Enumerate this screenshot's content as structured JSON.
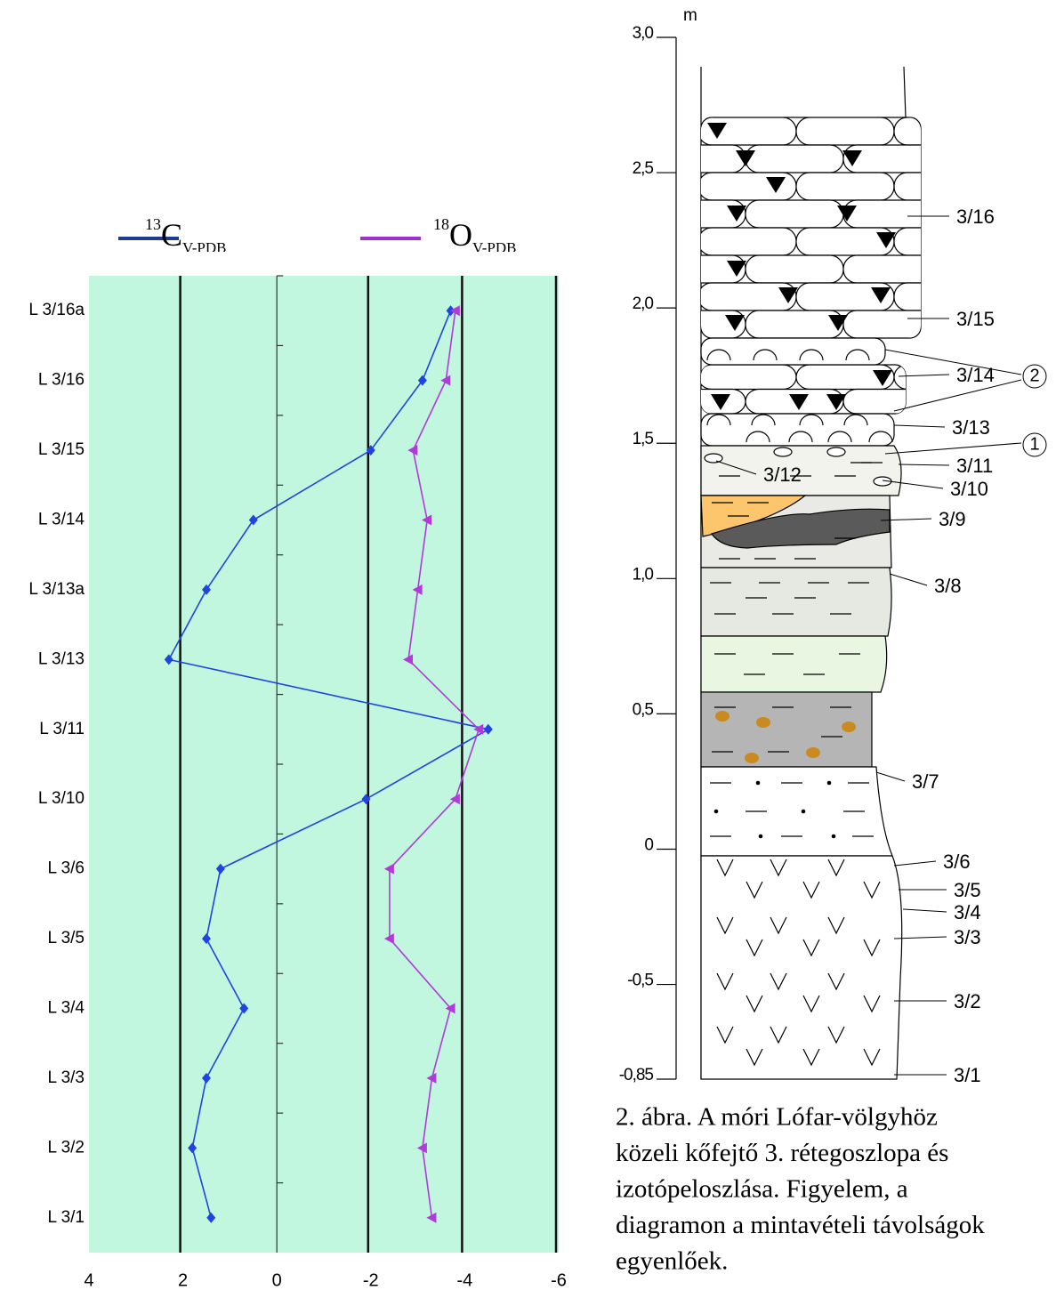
{
  "chart_data": {
    "type": "line",
    "orientation": "horizontal",
    "categories": [
      "L 3/16a",
      "L 3/16",
      "L 3/15",
      "L 3/14",
      "L 3/13a",
      "L 3/13",
      "L 3/11",
      "L 3/10",
      "L 3/6",
      "L 3/5",
      "L 3/4",
      "L 3/3",
      "L 3/2",
      "L 3/1"
    ],
    "series": [
      {
        "name": [
          "13",
          "C",
          "V-PDB"
        ],
        "color": "#1f44e0",
        "legend_color": "#1f3a93",
        "marker": "diamond",
        "values": [
          -3.7,
          -3.1,
          -2.0,
          0.5,
          1.5,
          2.3,
          -4.5,
          -1.9,
          1.2,
          1.5,
          0.7,
          1.5,
          1.8,
          1.4
        ]
      },
      {
        "name": [
          "18",
          "O",
          "V-PDB"
        ],
        "color": "#b23ad8",
        "legend_color": "#a030d0",
        "marker": "triangle-left",
        "values": [
          -3.8,
          -3.6,
          -2.9,
          -3.2,
          -3.0,
          -2.8,
          -4.3,
          -3.8,
          -2.4,
          -2.4,
          -3.7,
          -3.3,
          -3.1,
          -3.3
        ]
      }
    ],
    "xlim": [
      4,
      -6
    ],
    "xticks": [
      4,
      2,
      0,
      -2,
      -4,
      -6
    ],
    "grid": true,
    "background": "#c1f7df"
  },
  "column": {
    "unit": "m",
    "ylim": [
      -0.85,
      3
    ],
    "yticks": [
      {
        "value": 3,
        "label": "3,0"
      },
      {
        "value": 2.5,
        "label": "2,5"
      },
      {
        "value": 2,
        "label": "2,0"
      },
      {
        "value": 1.5,
        "label": "1,5"
      },
      {
        "value": 1,
        "label": "1,0"
      },
      {
        "value": 0.5,
        "label": "0,5"
      },
      0,
      {
        "value": -0.5,
        "label": "-0,5"
      },
      {
        "value": -0.85,
        "label": "-0,85"
      }
    ],
    "labels": [
      "3/16",
      "3/15",
      "2",
      "3/14",
      "3/13",
      "1",
      "3/11",
      "3/12",
      "3/10",
      "3/9",
      "3/8",
      "3/7",
      "3/6",
      "3/5",
      "3/4",
      "3/3",
      "3/2",
      "3/1"
    ]
  },
  "caption": [
    "2. ábra. A móri Lófar-völgyhöz",
    "közeli kőfejtő 3. rétegoszlopa és",
    "izotópeloszlása. Figyelem, a",
    "diagramon a mintavételi távolságok",
    "egyenlőek."
  ]
}
